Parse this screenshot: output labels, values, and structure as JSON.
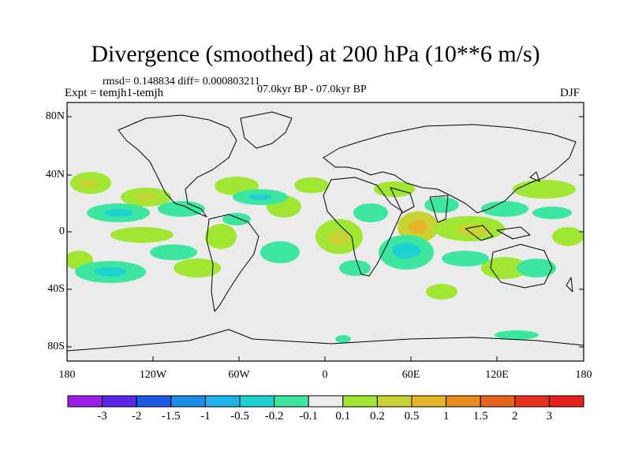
{
  "title": "Divergence (smoothed) at 200 hPa (10**6 m/s)",
  "stats": "rmsd= 0.148834 diff= 0.000803211",
  "experiment": "Expt = temjh1-temjh",
  "period": "07.0kyr BP - 07.0kyr BP",
  "season": "DJF",
  "map": {
    "projection": "cylindrical equidistant",
    "background_color": "#ebebeb",
    "lat_ticks": [
      "80N",
      "40N",
      "0",
      "40S",
      "80S"
    ],
    "lon_ticks": [
      "180",
      "120W",
      "60W",
      "0",
      "60E",
      "120E",
      "180"
    ]
  },
  "colorbar": {
    "labels": [
      "-3",
      "-2",
      "-1.5",
      "-1",
      "-0.5",
      "-0.2",
      "-0.1",
      "0.1",
      "0.2",
      "0.5",
      "1",
      "1.5",
      "2",
      "3"
    ],
    "colors": [
      "#9a1ee6",
      "#5a28e6",
      "#1e5ae6",
      "#1e8ce6",
      "#1eb4e6",
      "#1ed2d2",
      "#3ce6a0",
      "#ebebeb",
      "#a0e632",
      "#c8d232",
      "#e6b428",
      "#e68c1e",
      "#e6641e",
      "#e6321e",
      "#e61e1e"
    ]
  },
  "legend_colors": {
    "land_outline": "#000000",
    "neutral": "#ebebeb"
  }
}
